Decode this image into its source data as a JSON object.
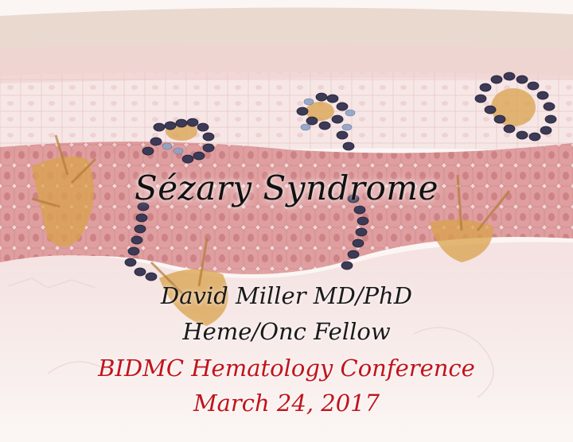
{
  "slide": {
    "title": "Sézary Syndrome",
    "author": "David Miller MD/PhD",
    "role": "Heme/Onc Fellow",
    "event": "BIDMC Hematology Conference",
    "date": "March 24, 2017"
  },
  "colors": {
    "title_text": "#111111",
    "body_text": "#1a1a1a",
    "accent_red": "#c0141c",
    "background": "#fbf6f4",
    "tissue_pink": "#f1cfd1",
    "tissue_dark": "#c9706f",
    "cell_nucleus": "#3c3a55"
  }
}
